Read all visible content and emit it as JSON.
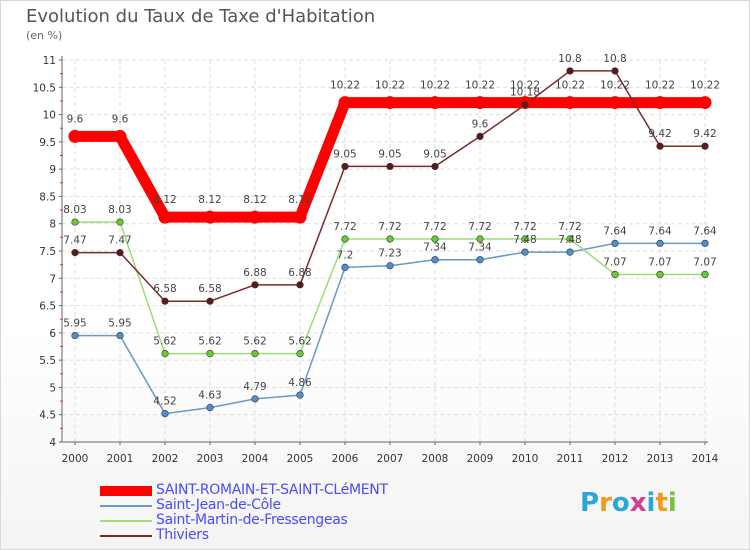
{
  "brand": {
    "text": "Proxiti",
    "letter_colors": [
      "#2aa6d8",
      "#f29a1d",
      "#2aa6d8",
      "#d43f8d",
      "#2aa6d8",
      "#f29a1d",
      "#7ac143"
    ]
  },
  "chart_data": {
    "type": "line",
    "title": "Evolution du Taux de Taxe d'Habitation",
    "subtitle": "(en %)",
    "xlabel": "",
    "ylabel": "",
    "x": [
      "2000",
      "2001",
      "2002",
      "2003",
      "2004",
      "2005",
      "2006",
      "2007",
      "2008",
      "2009",
      "2010",
      "2011",
      "2012",
      "2013",
      "2014"
    ],
    "ylim": [
      4,
      11
    ],
    "yticks": [
      "4",
      "4.5",
      "5",
      "5.5",
      "6",
      "6.5",
      "7",
      "7.5",
      "8",
      "8.5",
      "9",
      "9.5",
      "10",
      "10.5",
      "11"
    ],
    "grid": true,
    "legend_position": "bottom-left",
    "series": [
      {
        "name": "SAINT-ROMAIN-ET-SAINT-CLéMENT",
        "color": "#ff0000",
        "point_color": "#ff0000",
        "values": [
          9.6,
          9.6,
          8.12,
          8.12,
          8.12,
          8.12,
          10.22,
          10.22,
          10.22,
          10.22,
          10.22,
          10.22,
          10.22,
          10.22,
          10.22
        ],
        "labels": [
          "9.6",
          "9.6",
          "8.12",
          "8.12",
          "8.12",
          "8.12",
          "10.22",
          "10.22",
          "10.22",
          "10.22",
          "10.22",
          "10.22",
          "10.22",
          "10.22",
          "10.22"
        ]
      },
      {
        "name": "Saint-Jean-de-Côle",
        "color": "#6699cc",
        "point_color": "#4f8fd0",
        "values": [
          5.95,
          5.95,
          4.52,
          4.63,
          4.79,
          4.86,
          7.2,
          7.23,
          7.34,
          7.34,
          7.48,
          7.48,
          7.64,
          7.64,
          7.64
        ],
        "labels": [
          "5.95",
          "5.95",
          "4.52",
          "4.63",
          "4.79",
          "4.86",
          "7.2",
          "7.23",
          "7.34",
          "7.34",
          "7.48",
          "7.48",
          "7.64",
          "7.64",
          "7.64"
        ]
      },
      {
        "name": "Saint-Martin-de-Fressengeas",
        "color": "#99dd77",
        "point_color": "#66cc33",
        "values": [
          8.03,
          8.03,
          5.62,
          5.62,
          5.62,
          5.62,
          7.72,
          7.72,
          7.72,
          7.72,
          7.72,
          7.72,
          7.07,
          7.07,
          7.07
        ],
        "labels": [
          "8.03",
          "8.03",
          "5.62",
          "5.62",
          "5.62",
          "5.62",
          "7.72",
          "7.72",
          "7.72",
          "7.72",
          "7.72",
          "7.72",
          "7.07",
          "7.07",
          "7.07"
        ]
      },
      {
        "name": "Thiviers",
        "color": "#7a2a2a",
        "point_color": "#5c1a1a",
        "values": [
          7.47,
          7.47,
          6.58,
          6.58,
          6.88,
          6.88,
          9.05,
          9.05,
          9.05,
          9.6,
          10.18,
          10.8,
          10.8,
          9.42,
          9.42
        ],
        "labels": [
          "7.47",
          "7.47",
          "6.58",
          "6.58",
          "6.88",
          "6.88",
          "9.05",
          "9.05",
          "9.05",
          "9.6",
          "10.18",
          "10.8",
          "10.8",
          "9.42",
          "9.42"
        ]
      }
    ]
  }
}
